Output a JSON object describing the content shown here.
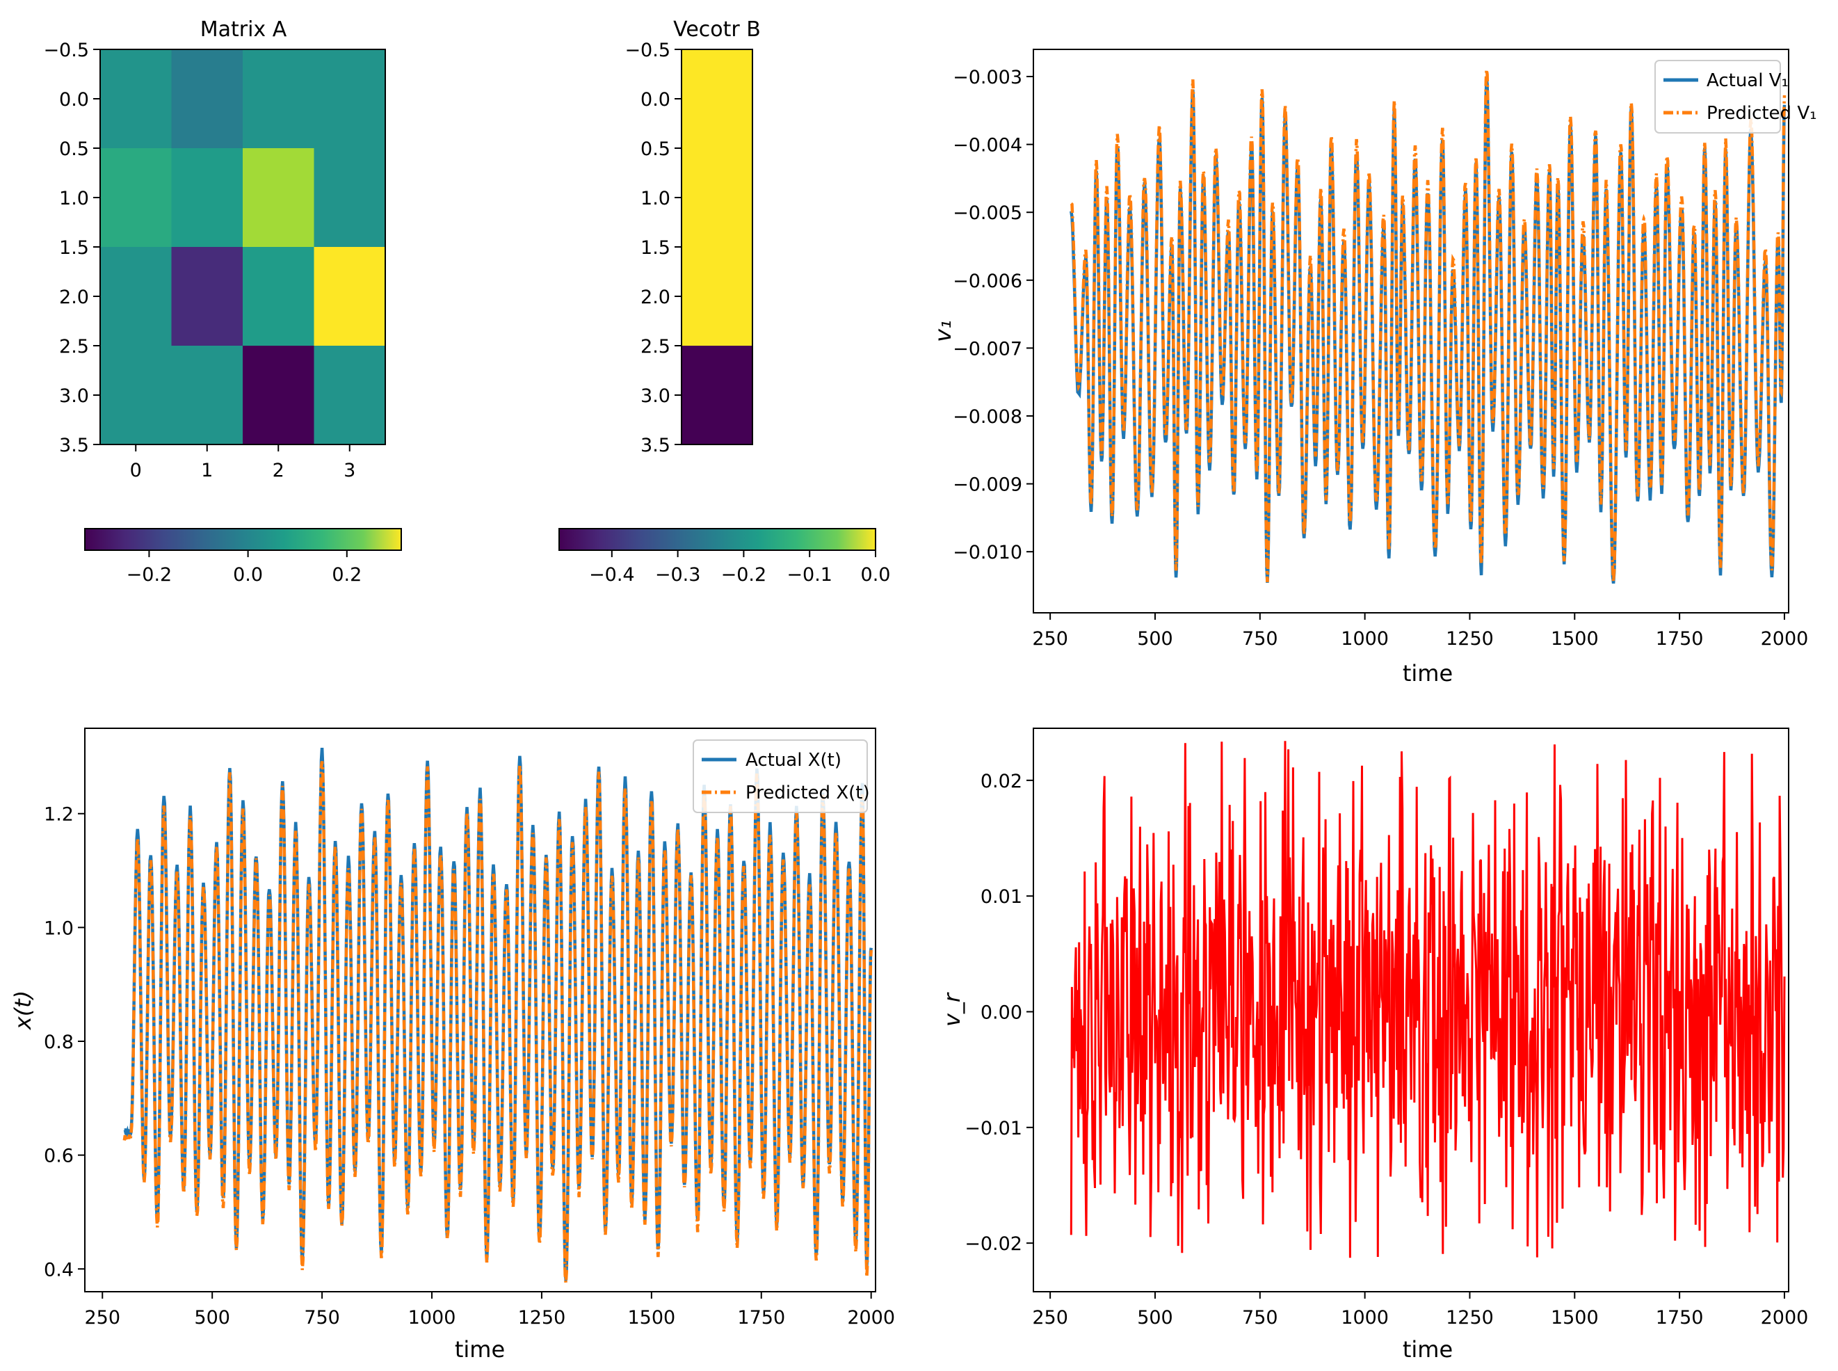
{
  "chart_data": [
    {
      "type": "heatmap",
      "title": "Matrix A",
      "ytick_labels": [
        "−0.5",
        "0.0",
        "0.5",
        "1.0",
        "1.5",
        "2.0",
        "2.5",
        "3.0",
        "3.5"
      ],
      "xtick_labels": [
        "0",
        "1",
        "2",
        "3"
      ],
      "values": [
        [
          0.0,
          -0.06,
          0.0,
          0.0
        ],
        [
          0.06,
          0.02,
          0.22,
          0.0
        ],
        [
          0.0,
          -0.25,
          0.02,
          0.31
        ],
        [
          0.0,
          0.0,
          -0.33,
          0.0
        ]
      ],
      "vmin": -0.33,
      "vmax": 0.31,
      "colormap": "viridis",
      "colorbar": {
        "orientation": "horizontal",
        "tick_values": [
          -0.2,
          0.0,
          0.2
        ],
        "tick_labels": [
          "−0.2",
          "0.0",
          "0.2"
        ]
      }
    },
    {
      "type": "heatmap",
      "title": "Vecotr B",
      "ytick_labels": [
        "−0.5",
        "0.0",
        "0.5",
        "1.0",
        "1.5",
        "2.0",
        "2.5",
        "3.0",
        "3.5"
      ],
      "values": [
        [
          0.0
        ],
        [
          0.0
        ],
        [
          0.0
        ],
        [
          -0.48
        ]
      ],
      "vmin": -0.48,
      "vmax": 0.0,
      "colormap": "viridis",
      "colorbar": {
        "orientation": "horizontal",
        "tick_values": [
          -0.4,
          -0.3,
          -0.2,
          -0.1,
          0.0
        ],
        "tick_labels": [
          "−0.4",
          "−0.3",
          "−0.2",
          "−0.1",
          "0.0"
        ]
      }
    },
    {
      "type": "line",
      "xlabel": "time",
      "ylabel": "v₁",
      "xlim": [
        210,
        2010
      ],
      "ylim": [
        -0.0109,
        -0.0026
      ],
      "xticks": [
        250,
        500,
        750,
        1000,
        1250,
        1500,
        1750,
        2000
      ],
      "yticks": [
        -0.003,
        -0.004,
        -0.005,
        -0.006,
        -0.007,
        -0.008,
        -0.009,
        -0.01
      ],
      "ytick_labels": [
        "−0.003",
        "−0.004",
        "−0.005",
        "−0.006",
        "−0.007",
        "−0.008",
        "−0.009",
        "−0.010"
      ],
      "series": [
        {
          "name": "Actual V₁",
          "color": "#1f77b4",
          "style": "solid"
        },
        {
          "name": "Predicted V₁",
          "color": "#ff7f0e",
          "style": "dashdot"
        }
      ],
      "legend": "top-right",
      "signal": {
        "x_start": 300,
        "x_end": 2000,
        "peak_times": [
          300,
          335,
          360,
          385,
          410,
          440,
          475,
          510,
          540,
          560,
          590,
          615,
          645,
          675,
          700,
          730,
          755,
          780,
          810,
          840,
          870,
          895,
          920,
          950,
          980,
          1010,
          1045,
          1070,
          1090,
          1120,
          1150,
          1185,
          1210,
          1240,
          1265,
          1290,
          1320,
          1350,
          1380,
          1410,
          1440,
          1460,
          1490,
          1520,
          1550,
          1575,
          1610,
          1635,
          1665,
          1695,
          1720,
          1755,
          1785,
          1810,
          1835,
          1860,
          1885,
          1920,
          1955,
          1985,
          2000
        ],
        "peak_levels": [
          -0.005,
          -0.0057,
          -0.0044,
          -0.0048,
          -0.004,
          -0.0049,
          -0.0046,
          -0.0039,
          -0.0055,
          -0.0047,
          -0.0032,
          -0.0045,
          -0.0042,
          -0.0053,
          -0.0048,
          -0.004,
          -0.0033,
          -0.005,
          -0.0036,
          -0.0043,
          -0.0058,
          -0.0048,
          -0.004,
          -0.0054,
          -0.0041,
          -0.0046,
          -0.0052,
          -0.0035,
          -0.0049,
          -0.0042,
          -0.0047,
          -0.0039,
          -0.0058,
          -0.0047,
          -0.0043,
          -0.003,
          -0.0048,
          -0.0041,
          -0.0052,
          -0.0045,
          -0.0044,
          -0.0046,
          -0.0037,
          -0.0053,
          -0.0039,
          -0.0047,
          -0.0041,
          -0.0035,
          -0.0052,
          -0.0046,
          -0.0043,
          -0.0049,
          -0.0053,
          -0.0041,
          -0.0048,
          -0.0041,
          -0.0052,
          -0.0038,
          -0.0057,
          -0.0054,
          -0.0034
        ],
        "trough_levels": [
          -0.0077,
          -0.0094,
          -0.0087,
          -0.0096,
          -0.0083,
          -0.0095,
          -0.0092,
          -0.0084,
          -0.0104,
          -0.0083,
          -0.0094,
          -0.0088,
          -0.0078,
          -0.0092,
          -0.0085,
          -0.0089,
          -0.0105,
          -0.0092,
          -0.0079,
          -0.0098,
          -0.0087,
          -0.0093,
          -0.0089,
          -0.0097,
          -0.0085,
          -0.0094,
          -0.0101,
          -0.0083,
          -0.0086,
          -0.0091,
          -0.0101,
          -0.0094,
          -0.0085,
          -0.0097,
          -0.0103,
          -0.0082,
          -0.0099,
          -0.0093,
          -0.0085,
          -0.0092,
          -0.0089,
          -0.0102,
          -0.0088,
          -0.0084,
          -0.0094,
          -0.0105,
          -0.0086,
          -0.0093,
          -0.0092,
          -0.0091,
          -0.0085,
          -0.0096,
          -0.0092,
          -0.0088,
          -0.0103,
          -0.0091,
          -0.0092,
          -0.0088,
          -0.0104,
          -0.0078
        ]
      }
    },
    {
      "type": "line",
      "xlabel": "time",
      "ylabel": "x(t)",
      "xlim": [
        210,
        2010
      ],
      "ylim": [
        0.36,
        1.35
      ],
      "xticks": [
        250,
        500,
        750,
        1000,
        1250,
        1500,
        1750,
        2000
      ],
      "yticks": [
        0.4,
        0.6,
        0.8,
        1.0,
        1.2
      ],
      "ytick_labels": [
        "0.4",
        "0.6",
        "0.8",
        "1.0",
        "1.2"
      ],
      "series": [
        {
          "name": "Actual X(t)",
          "color": "#1f77b4",
          "style": "solid"
        },
        {
          "name": "Predicted X(t)",
          "color": "#ff7f0e",
          "style": "dashdot"
        }
      ],
      "legend": "top-right",
      "signal": {
        "x_start": 300,
        "x_end": 2000,
        "peak_times": [
          300,
          330,
          360,
          390,
          420,
          450,
          480,
          510,
          540,
          570,
          600,
          630,
          660,
          690,
          720,
          750,
          780,
          810,
          840,
          870,
          900,
          930,
          960,
          990,
          1020,
          1050,
          1080,
          1110,
          1140,
          1170,
          1200,
          1230,
          1260,
          1290,
          1320,
          1350,
          1380,
          1410,
          1440,
          1470,
          1500,
          1530,
          1560,
          1590,
          1620,
          1650,
          1680,
          1710,
          1740,
          1770,
          1800,
          1830,
          1860,
          1890,
          1920,
          1950,
          1980,
          2000
        ],
        "peak_levels": [
          0.64,
          1.17,
          1.13,
          1.23,
          1.11,
          1.21,
          1.08,
          1.15,
          1.28,
          1.22,
          1.13,
          1.07,
          1.26,
          1.18,
          1.09,
          1.31,
          1.15,
          1.12,
          1.22,
          1.17,
          1.24,
          1.09,
          1.15,
          1.29,
          1.14,
          1.12,
          1.21,
          1.24,
          1.11,
          1.08,
          1.3,
          1.18,
          1.13,
          1.2,
          1.16,
          1.22,
          1.28,
          1.1,
          1.26,
          1.13,
          1.24,
          1.15,
          1.18,
          1.1,
          1.25,
          1.17,
          1.22,
          1.12,
          1.28,
          1.18,
          1.13,
          1.21,
          1.09,
          1.24,
          1.18,
          1.12,
          1.25,
          0.97
        ],
        "trough_levels": [
          0.64,
          0.56,
          0.48,
          0.63,
          0.54,
          0.5,
          0.6,
          0.52,
          0.44,
          0.58,
          0.49,
          0.6,
          0.55,
          0.41,
          0.62,
          0.51,
          0.48,
          0.57,
          0.63,
          0.43,
          0.59,
          0.51,
          0.57,
          0.62,
          0.46,
          0.54,
          0.61,
          0.42,
          0.55,
          0.52,
          0.6,
          0.45,
          0.57,
          0.38,
          0.54,
          0.6,
          0.47,
          0.56,
          0.52,
          0.49,
          0.43,
          0.62,
          0.55,
          0.48,
          0.58,
          0.51,
          0.45,
          0.59,
          0.53,
          0.48,
          0.6,
          0.55,
          0.42,
          0.58,
          0.52,
          0.44,
          0.4,
          0.6
        ]
      }
    },
    {
      "type": "line",
      "xlabel": "time",
      "ylabel": "v_r",
      "xlim": [
        210,
        2010
      ],
      "ylim": [
        -0.0242,
        0.0245
      ],
      "xticks": [
        250,
        500,
        750,
        1000,
        1250,
        1500,
        1750,
        2000
      ],
      "yticks": [
        0.02,
        0.01,
        0.0,
        -0.01,
        -0.02
      ],
      "ytick_labels": [
        "0.02",
        "0.01",
        "0.00",
        "−0.01",
        "−0.02"
      ],
      "series": [
        {
          "name": "",
          "color": "#ff0000",
          "style": "solid"
        }
      ],
      "signal": {
        "x_start": 300,
        "x_end": 2000,
        "amplitude_max": 0.0235,
        "amplitude_min": -0.0215
      }
    }
  ]
}
